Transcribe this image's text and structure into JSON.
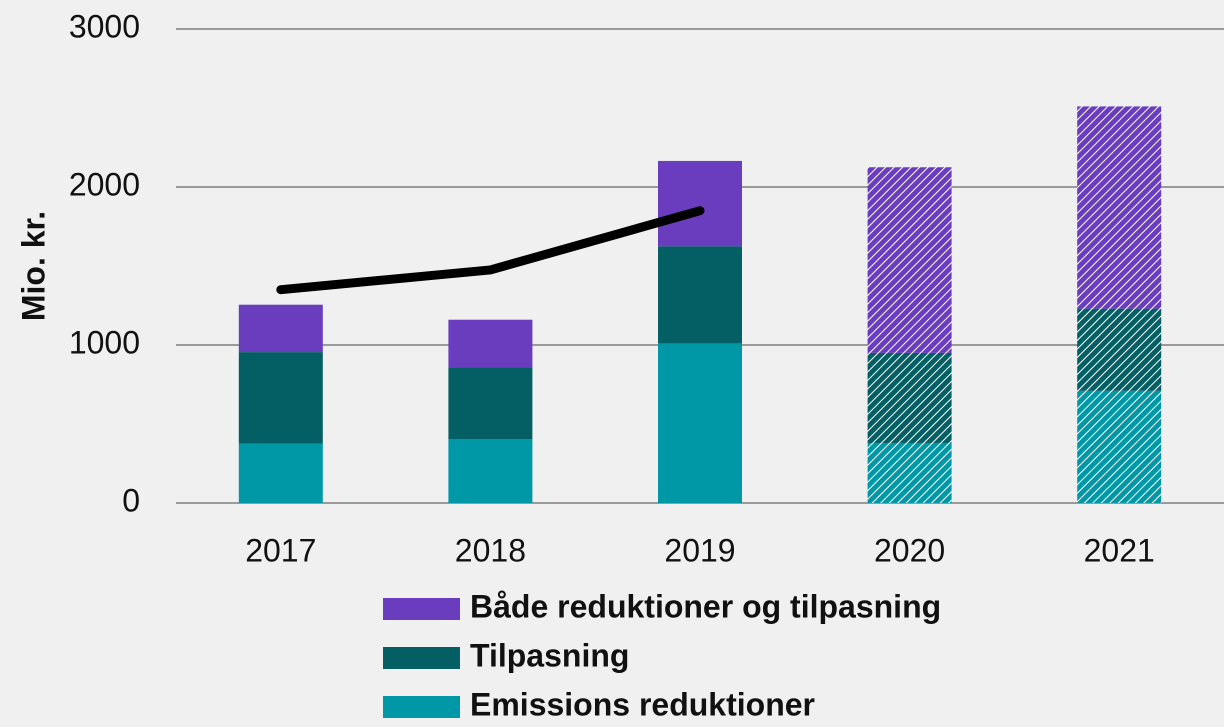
{
  "chart_data": {
    "type": "stacked_bar_line",
    "y_label": "Mio. kr.",
    "categories": [
      "2017",
      "2018",
      "2019",
      "2020",
      "2021"
    ],
    "series": [
      {
        "name": "Emissions reduktioner",
        "color": "#0098a6",
        "values": [
          375,
          405,
          1010,
          380,
          710
        ]
      },
      {
        "name": "Tilpasning",
        "color": "#035f63",
        "values": [
          580,
          455,
          615,
          570,
          520
        ]
      },
      {
        "name": "Både reduktioner og tilpasning",
        "color": "#6a3dbf",
        "values": [
          300,
          300,
          540,
          1175,
          1280
        ]
      }
    ],
    "line": {
      "color": "#000000",
      "values": [
        1350,
        1475,
        1850,
        null,
        null
      ]
    },
    "hatched": [
      false,
      false,
      false,
      true,
      true
    ],
    "ylim": [
      0,
      3000
    ],
    "yticks": [
      0,
      1000,
      2000,
      3000
    ],
    "grid": true
  }
}
